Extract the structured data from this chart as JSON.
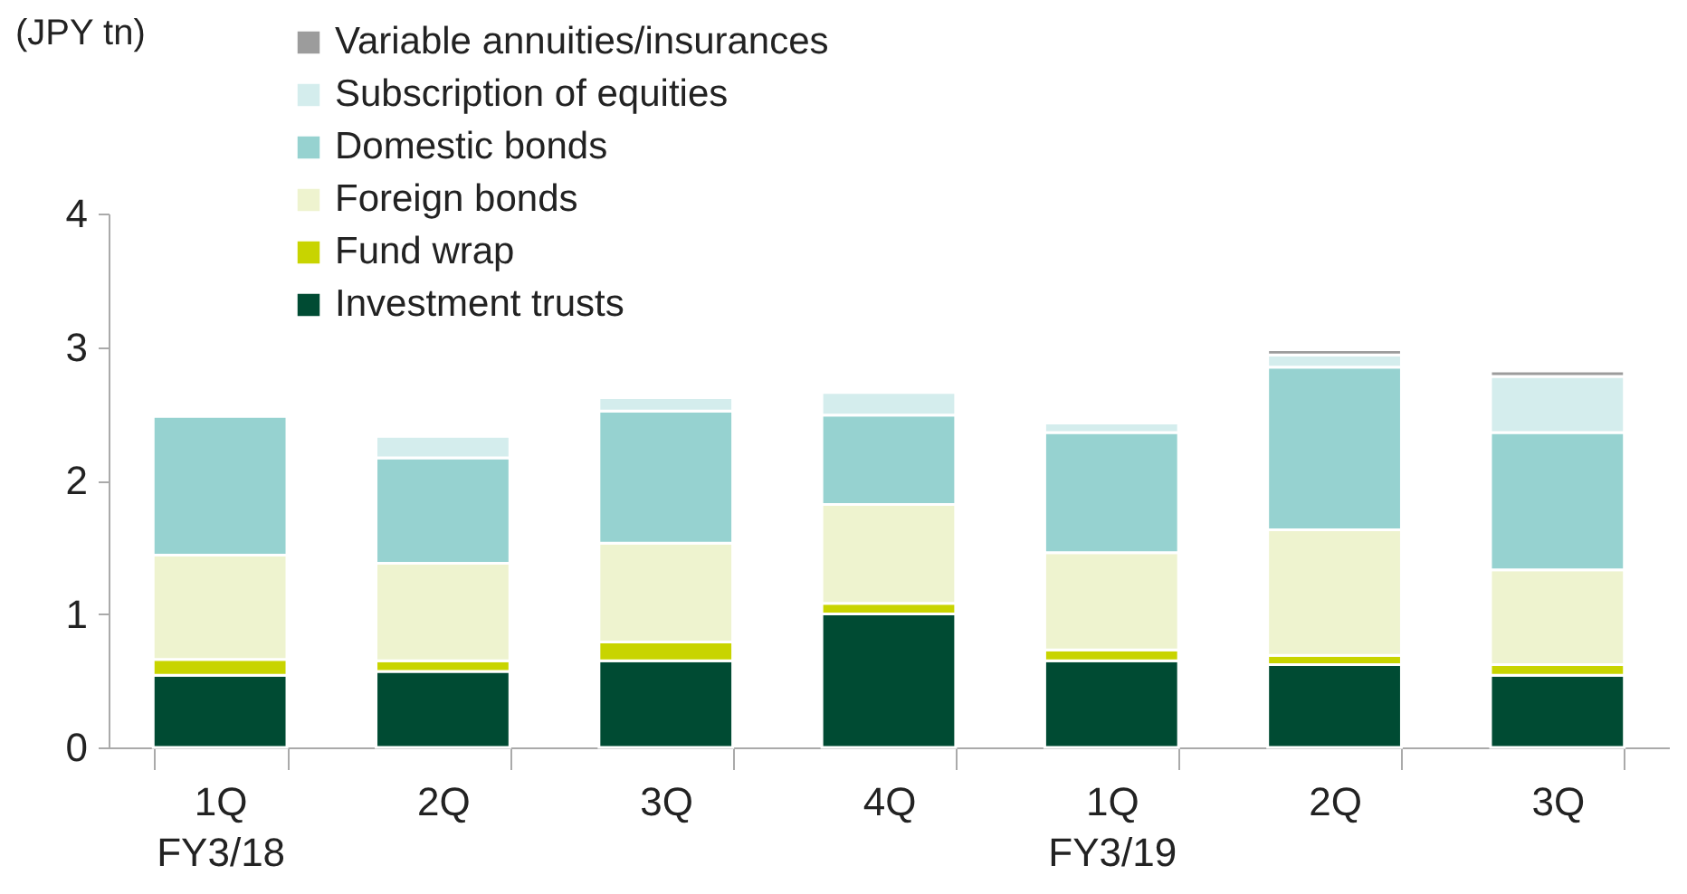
{
  "chart_data": {
    "type": "bar",
    "stacked": true,
    "ylabel": "(JPY tn)",
    "categories": [
      "1Q\nFY3/18",
      "2Q",
      "3Q",
      "4Q",
      "1Q\nFY3/19",
      "2Q",
      "3Q"
    ],
    "series": [
      {
        "name": "Investment trusts",
        "color": "#004b33",
        "values": [
          0.54,
          0.57,
          0.65,
          1.0,
          0.65,
          0.62,
          0.54
        ]
      },
      {
        "name": "Fund wrap",
        "color": "#c8d400",
        "values": [
          0.12,
          0.08,
          0.14,
          0.08,
          0.08,
          0.07,
          0.08
        ]
      },
      {
        "name": "Foreign bonds",
        "color": "#eef3cf",
        "values": [
          0.78,
          0.73,
          0.74,
          0.74,
          0.73,
          0.94,
          0.71
        ]
      },
      {
        "name": "Domestic bonds",
        "color": "#96d2d0",
        "values": [
          1.04,
          0.79,
          0.99,
          0.67,
          0.9,
          1.22,
          1.03
        ]
      },
      {
        "name": "Subscription of equities",
        "color": "#d4eded",
        "values": [
          0,
          0.16,
          0.1,
          0.17,
          0.07,
          0.09,
          0.42
        ]
      },
      {
        "name": "Variable annuities/insurances",
        "color": "#9c9c9c",
        "values": [
          0,
          0,
          0,
          0,
          0,
          0.04,
          0.04
        ]
      }
    ],
    "ylim": [
      0,
      4
    ],
    "yticks": [
      0,
      1,
      2,
      3,
      4
    ],
    "grid": false,
    "legend": "top left"
  }
}
